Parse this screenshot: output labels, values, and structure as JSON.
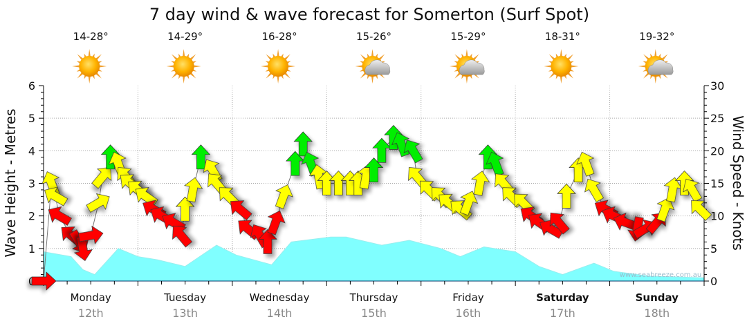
{
  "chart_data": {
    "type": "area+arrows",
    "title": "7 day wind & wave forecast for Somerton  (Surf Spot)",
    "ylabel_left": "Wave Height - Metres",
    "ylabel_right": "Wind Speed - Knots",
    "ylim_left": [
      0,
      6
    ],
    "ylim_right": [
      0,
      30
    ],
    "yticks_left": [
      "0",
      "1",
      "2",
      "3",
      "4",
      "5",
      "6"
    ],
    "yticks_right": [
      "0",
      "5",
      "10",
      "15",
      "20",
      "25",
      "30"
    ],
    "grid": true,
    "watermark": "www.seabreeze.com.au",
    "days": [
      {
        "name": "Monday",
        "date": "12th",
        "temp": "14-28°",
        "icon": "sunny",
        "bold": false
      },
      {
        "name": "Tuesday",
        "date": "13th",
        "temp": "14-29°",
        "icon": "sunny",
        "bold": false
      },
      {
        "name": "Wednesday",
        "date": "14th",
        "temp": "16-28°",
        "icon": "sunny",
        "bold": false
      },
      {
        "name": "Thursday",
        "date": "15th",
        "temp": "15-26°",
        "icon": "partly-cloudy",
        "bold": false
      },
      {
        "name": "Friday",
        "date": "16th",
        "temp": "15-29°",
        "icon": "partly-cloudy",
        "bold": false
      },
      {
        "name": "Saturday",
        "date": "17th",
        "temp": "18-31°",
        "icon": "sunny",
        "bold": true
      },
      {
        "name": "Sunday",
        "date": "18th",
        "temp": "19-32°",
        "icon": "partly-cloudy",
        "bold": true
      }
    ],
    "wave_height_series": {
      "name": "Wave Height (m)",
      "hours": [
        0,
        7,
        10,
        13,
        16,
        19,
        24,
        29,
        36,
        44,
        49,
        55,
        58,
        63,
        73,
        77,
        86,
        93,
        101,
        106,
        112,
        120,
        126,
        132,
        140,
        145,
        154,
        168
      ],
      "values": [
        0.9,
        0.75,
        0.35,
        0.2,
        0.6,
        1.0,
        0.75,
        0.65,
        0.45,
        1.1,
        0.8,
        0.6,
        0.5,
        1.2,
        1.35,
        1.35,
        1.1,
        1.25,
        1.0,
        0.75,
        1.05,
        0.9,
        0.45,
        0.2,
        0.55,
        0.3,
        0.15,
        0.1
      ]
    },
    "wind_colors": {
      "r": "#ff0000",
      "y": "#ffff00",
      "g": "#00ee00"
    },
    "wind_series": {
      "name": "Wind Speed (knots) / direction arrow",
      "points": [
        [
          0,
          0,
          90,
          "r"
        ],
        [
          2,
          15,
          -20,
          "y"
        ],
        [
          3,
          13,
          -60,
          "y"
        ],
        [
          4,
          10,
          -60,
          "r"
        ],
        [
          7,
          7,
          -50,
          "r"
        ],
        [
          9,
          6,
          150,
          "r"
        ],
        [
          10,
          5,
          170,
          "r"
        ],
        [
          12,
          7,
          80,
          "r"
        ],
        [
          14,
          12,
          60,
          "y"
        ],
        [
          15,
          16,
          40,
          "y"
        ],
        [
          17,
          19,
          0,
          "g"
        ],
        [
          19,
          18,
          -20,
          "y"
        ],
        [
          21,
          16,
          -40,
          "y"
        ],
        [
          22,
          15,
          -50,
          "y"
        ],
        [
          24,
          14,
          -50,
          "y"
        ],
        [
          26,
          13,
          -55,
          "y"
        ],
        [
          28,
          11,
          -60,
          "r"
        ],
        [
          30,
          10,
          -60,
          "r"
        ],
        [
          33,
          9,
          -60,
          "r"
        ],
        [
          35,
          7,
          -40,
          "r"
        ],
        [
          36,
          11,
          0,
          "y"
        ],
        [
          38,
          14,
          10,
          "y"
        ],
        [
          40,
          19,
          0,
          "g"
        ],
        [
          43,
          17,
          -30,
          "y"
        ],
        [
          44,
          15,
          -40,
          "y"
        ],
        [
          47,
          13,
          -45,
          "y"
        ],
        [
          50,
          11,
          -50,
          "r"
        ],
        [
          52,
          8,
          -50,
          "r"
        ],
        [
          55,
          7,
          -30,
          "r"
        ],
        [
          57,
          6,
          0,
          "r"
        ],
        [
          59,
          9,
          20,
          "r"
        ],
        [
          61,
          13,
          20,
          "y"
        ],
        [
          64,
          18,
          0,
          "g"
        ],
        [
          66,
          21,
          0,
          "g"
        ],
        [
          68,
          18,
          -20,
          "g"
        ],
        [
          70,
          16,
          -10,
          "y"
        ],
        [
          72,
          15,
          0,
          "y"
        ],
        [
          75,
          15,
          0,
          "y"
        ],
        [
          78,
          15,
          0,
          "y"
        ],
        [
          80,
          15,
          0,
          "y"
        ],
        [
          82,
          16,
          10,
          "y"
        ],
        [
          84,
          17,
          0,
          "g"
        ],
        [
          86,
          20,
          0,
          "g"
        ],
        [
          89,
          22,
          0,
          "g"
        ],
        [
          91,
          21,
          -20,
          "g"
        ],
        [
          94,
          20,
          -30,
          "g"
        ],
        [
          95,
          16,
          -40,
          "y"
        ],
        [
          98,
          14,
          -45,
          "y"
        ],
        [
          101,
          13,
          -45,
          "y"
        ],
        [
          103,
          12,
          -50,
          "y"
        ],
        [
          106,
          11,
          -50,
          "y"
        ],
        [
          108,
          12,
          20,
          "y"
        ],
        [
          111,
          15,
          10,
          "y"
        ],
        [
          113,
          19,
          0,
          "g"
        ],
        [
          115,
          18,
          -20,
          "g"
        ],
        [
          117,
          15,
          -40,
          "y"
        ],
        [
          119,
          13,
          -45,
          "y"
        ],
        [
          122,
          12,
          -45,
          "y"
        ],
        [
          124,
          10,
          -55,
          "r"
        ],
        [
          126,
          9,
          -55,
          "r"
        ],
        [
          129,
          8,
          -60,
          "r"
        ],
        [
          131,
          9,
          -40,
          "r"
        ],
        [
          133,
          13,
          0,
          "y"
        ],
        [
          136,
          17,
          0,
          "y"
        ],
        [
          138,
          18,
          -20,
          "y"
        ],
        [
          140,
          14,
          -30,
          "y"
        ],
        [
          143,
          11,
          -60,
          "r"
        ],
        [
          145,
          10,
          -65,
          "r"
        ],
        [
          148,
          9,
          -70,
          "r"
        ],
        [
          151,
          8,
          190,
          "r"
        ],
        [
          153,
          8,
          60,
          "r"
        ],
        [
          156,
          9,
          40,
          "r"
        ],
        [
          158,
          11,
          20,
          "y"
        ],
        [
          160,
          14,
          10,
          "y"
        ],
        [
          163,
          15,
          0,
          "y"
        ],
        [
          165,
          14,
          -30,
          "y"
        ],
        [
          167,
          11,
          -45,
          "y"
        ]
      ]
    }
  }
}
